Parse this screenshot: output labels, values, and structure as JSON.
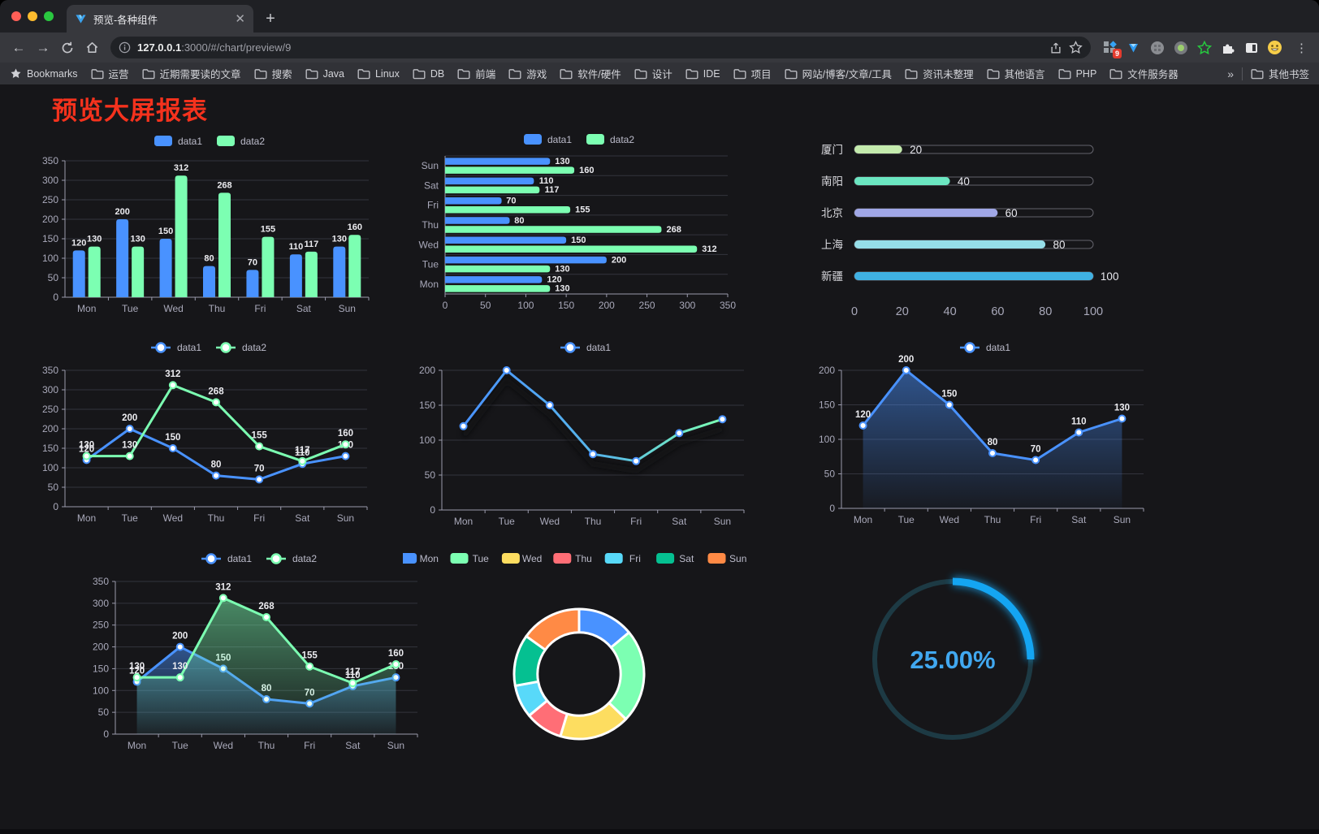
{
  "browser": {
    "tab_title": "预览-各种组件",
    "url_host": "127.0.0.1",
    "url_rest": ":3000/#/chart/preview/9",
    "bookmarks_label": "Bookmarks",
    "bookmarks": [
      "运营",
      "近期需要读的文章",
      "搜索",
      "Java",
      "Linux",
      "DB",
      "前端",
      "游戏",
      "软件/硬件",
      "设计",
      "IDE",
      "项目",
      "网站/博客/文章/工具",
      "资讯未整理",
      "其他语言",
      "PHP",
      "文件服务器"
    ],
    "overflow_label": "»",
    "other_bookmarks_label": "其他书签",
    "extension_badge": "9"
  },
  "page": {
    "title": "预览大屏报表",
    "title_color": "#f5321d",
    "background": "#161619"
  },
  "chart_data": [
    {
      "type": "bar",
      "categories": [
        "Mon",
        "Tue",
        "Wed",
        "Thu",
        "Fri",
        "Sat",
        "Sun"
      ],
      "series": [
        {
          "name": "data1",
          "color": "#4992ff",
          "values": [
            120,
            200,
            150,
            80,
            70,
            110,
            130
          ]
        },
        {
          "name": "data2",
          "color": "#7cffb2",
          "values": [
            130,
            130,
            312,
            268,
            155,
            117,
            160
          ]
        }
      ],
      "ylim": [
        0,
        350
      ],
      "ytick_step": 50,
      "grid": true,
      "labels": true,
      "legend_position": "top"
    },
    {
      "type": "bar-horizontal",
      "categories": [
        "Mon",
        "Tue",
        "Wed",
        "Thu",
        "Fri",
        "Sat",
        "Sun"
      ],
      "categories_rendered_top_to_bottom": [
        "Sun",
        "Sat",
        "Fri",
        "Thu",
        "Wed",
        "Tue",
        "Mon"
      ],
      "series": [
        {
          "name": "data1",
          "color": "#4992ff",
          "values": [
            120,
            200,
            150,
            80,
            70,
            110,
            130
          ]
        },
        {
          "name": "data2",
          "color": "#7cffb2",
          "values": [
            130,
            130,
            312,
            268,
            155,
            117,
            160
          ]
        }
      ],
      "xlim": [
        0,
        350
      ],
      "xtick_step": 50,
      "grid": true,
      "labels": true,
      "legend_position": "top"
    },
    {
      "type": "progress-bars",
      "categories": [
        "厦门",
        "南阳",
        "北京",
        "上海",
        "新疆"
      ],
      "values": [
        20,
        40,
        60,
        80,
        100
      ],
      "colors": [
        "#c4ebad",
        "#6be6c1",
        "#a0a7e6",
        "#96dee8",
        "#3fb1e3"
      ],
      "xlim": [
        0,
        100
      ],
      "xticks": [
        0,
        20,
        40,
        60,
        80,
        100
      ],
      "labels": true
    },
    {
      "type": "line",
      "categories": [
        "Mon",
        "Tue",
        "Wed",
        "Thu",
        "Fri",
        "Sat",
        "Sun"
      ],
      "series": [
        {
          "name": "data1",
          "color": "#4992ff",
          "values": [
            120,
            200,
            150,
            80,
            70,
            110,
            130
          ]
        },
        {
          "name": "data2",
          "color": "#7cffb2",
          "values": [
            130,
            130,
            312,
            268,
            155,
            117,
            160
          ]
        }
      ],
      "ylim": [
        0,
        350
      ],
      "ytick_step": 50,
      "grid": true,
      "labels": true,
      "legend_position": "top"
    },
    {
      "type": "line",
      "categories": [
        "Mon",
        "Tue",
        "Wed",
        "Thu",
        "Fri",
        "Sat",
        "Sun"
      ],
      "series": [
        {
          "name": "data1",
          "color": "#4992ff",
          "color_gradient": [
            "#4992ff",
            "#7cffb2"
          ],
          "values": [
            120,
            200,
            150,
            80,
            70,
            110,
            130
          ]
        }
      ],
      "ylim": [
        0,
        200
      ],
      "ytick_step": 50,
      "grid": true,
      "labels": false,
      "shadow": true,
      "legend_position": "top"
    },
    {
      "type": "area",
      "categories": [
        "Mon",
        "Tue",
        "Wed",
        "Thu",
        "Fri",
        "Sat",
        "Sun"
      ],
      "series": [
        {
          "name": "data1",
          "color": "#4992ff",
          "values": [
            120,
            200,
            150,
            80,
            70,
            110,
            130
          ]
        }
      ],
      "ylim": [
        0,
        200
      ],
      "ytick_step": 50,
      "grid": true,
      "labels": true,
      "legend_position": "top"
    },
    {
      "type": "area",
      "categories": [
        "Mon",
        "Tue",
        "Wed",
        "Thu",
        "Fri",
        "Sat",
        "Sun"
      ],
      "series": [
        {
          "name": "data1",
          "color": "#4992ff",
          "values": [
            120,
            200,
            150,
            80,
            70,
            110,
            130
          ]
        },
        {
          "name": "data2",
          "color": "#7cffb2",
          "values": [
            130,
            130,
            312,
            268,
            155,
            117,
            160
          ]
        }
      ],
      "ylim": [
        0,
        350
      ],
      "ytick_step": 50,
      "grid": true,
      "labels": true,
      "legend_position": "top"
    },
    {
      "type": "pie",
      "categories": [
        "Mon",
        "Tue",
        "Wed",
        "Thu",
        "Fri",
        "Sat",
        "Sun"
      ],
      "values": [
        120,
        200,
        150,
        80,
        70,
        110,
        130
      ],
      "colors": [
        "#4992ff",
        "#7cffb2",
        "#fddd60",
        "#ff6e76",
        "#58d9f9",
        "#05c091",
        "#ff8a45"
      ],
      "inner_radius_ratio": 0.64,
      "border_color": "#ffffff",
      "legend_position": "top"
    },
    {
      "type": "gauge",
      "value": 25,
      "label": "25.00%",
      "color": "#14a5f2",
      "track_color": "#1d3a44",
      "text_color": "#41a8f0"
    }
  ],
  "style": {
    "axis_label_color": "#a9a9ba",
    "grid_line_color": "#33343d",
    "axis_line_color": "#9a9aac",
    "value_label_color": "#ececf0",
    "legend_text_color": "#bcbccb"
  }
}
